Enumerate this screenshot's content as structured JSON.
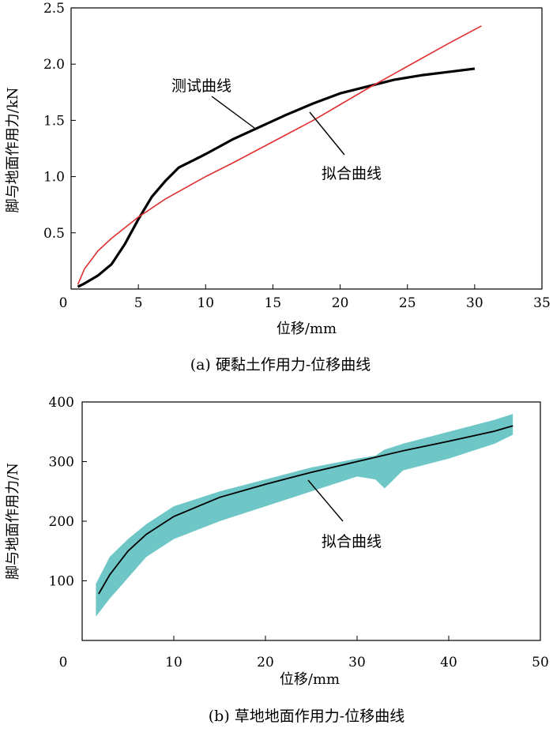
{
  "chart_data": [
    {
      "type": "line",
      "caption": "(a) 硬黏土作用力-位移曲线",
      "xlabel": "位移/mm",
      "ylabel": "脚与地面作用力/kN",
      "xlim": [
        0,
        35
      ],
      "ylim": [
        0,
        2.5
      ],
      "xticks": [
        0,
        5,
        10,
        15,
        20,
        25,
        30,
        35
      ],
      "yticks": [
        0.5,
        1.0,
        1.5,
        2.0,
        2.5
      ],
      "ytick_labels": [
        "0.5",
        "1.0",
        "1.5",
        "2.0",
        "2.5"
      ],
      "grid": false,
      "colors": {
        "measured": "#000000",
        "fit": "#e03030"
      },
      "series": [
        {
          "name": "测试曲线",
          "x": [
            0.5,
            1,
            2,
            3,
            4,
            5,
            6,
            7,
            8,
            9,
            10,
            12,
            14,
            16,
            18,
            20,
            22,
            24,
            26,
            28,
            30
          ],
          "values": [
            0.02,
            0.05,
            0.12,
            0.22,
            0.4,
            0.62,
            0.82,
            0.96,
            1.08,
            1.14,
            1.2,
            1.33,
            1.44,
            1.55,
            1.65,
            1.74,
            1.8,
            1.86,
            1.9,
            1.93,
            1.96
          ]
        },
        {
          "name": "拟合曲线",
          "x": [
            0.5,
            1,
            2,
            3,
            5,
            7,
            10,
            12,
            15,
            18,
            20,
            22,
            25,
            28,
            30.5
          ],
          "values": [
            0.04,
            0.18,
            0.34,
            0.45,
            0.64,
            0.8,
            1.0,
            1.12,
            1.31,
            1.5,
            1.64,
            1.78,
            1.98,
            2.18,
            2.34
          ]
        }
      ],
      "annotations": [
        {
          "text": "测试曲线",
          "points_to": "测试曲线"
        },
        {
          "text": "拟合曲线",
          "points_to": "拟合曲线"
        }
      ]
    },
    {
      "type": "line",
      "caption": "(b) 草地地面作用力-位移曲线",
      "xlabel": "位移/mm",
      "ylabel": "脚与地面作用力/N",
      "xlim": [
        0,
        50
      ],
      "ylim": [
        0,
        400
      ],
      "xticks": [
        0,
        10,
        20,
        30,
        40,
        50
      ],
      "yticks": [
        100,
        200,
        300,
        400
      ],
      "grid": false,
      "colors": {
        "measured_band": "#6ec6c6",
        "fit": "#000000"
      },
      "band": {
        "x": [
          1.5,
          3,
          5,
          7,
          10,
          15,
          20,
          25,
          30,
          32,
          33,
          35,
          40,
          45,
          47
        ],
        "upper": [
          95,
          140,
          170,
          195,
          225,
          250,
          270,
          290,
          305,
          310,
          320,
          330,
          350,
          370,
          380
        ],
        "lower": [
          40,
          70,
          105,
          140,
          170,
          200,
          225,
          250,
          275,
          270,
          255,
          285,
          305,
          330,
          345
        ]
      },
      "series": [
        {
          "name": "拟合曲线",
          "x": [
            1.8,
            3,
            5,
            7,
            10,
            15,
            20,
            25,
            30,
            35,
            40,
            45,
            47
          ],
          "values": [
            78,
            110,
            150,
            178,
            208,
            240,
            262,
            282,
            300,
            318,
            334,
            351,
            360
          ]
        }
      ],
      "annotations": [
        {
          "text": "拟合曲线",
          "points_to": "拟合曲线"
        }
      ]
    }
  ]
}
